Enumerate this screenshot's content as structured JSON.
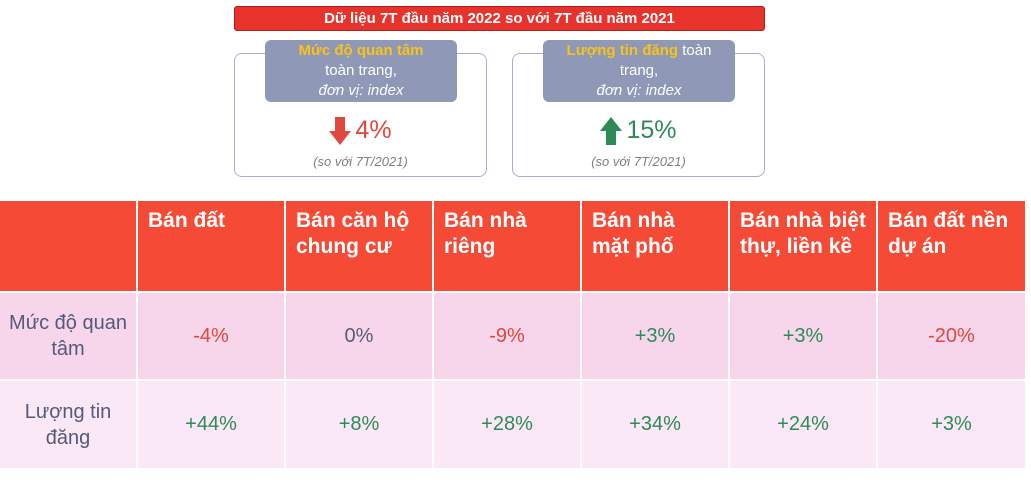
{
  "banner": "Dữ liệu 7T đầu năm 2022 so với 7T đầu năm 2021",
  "cards": [
    {
      "highlight": "Mức độ quan tâm",
      "line2": "toàn trang,",
      "line3": "đơn vị: index",
      "value": "4%",
      "direction": "down",
      "color": "#e1473d",
      "compare": "(so với 7T/2021)"
    },
    {
      "highlight": "Lượng tin đăng",
      "line1_rest": " toàn",
      "line2": "trang,",
      "line3": "đơn vị: index",
      "value": "15%",
      "direction": "up",
      "color": "#2e8a57",
      "compare": "(so với 7T/2021)"
    }
  ],
  "table": {
    "headers": [
      "",
      "Bán đất",
      "Bán căn hộ chung cư",
      "Bán nhà riêng",
      "Bán nhà mặt phố",
      "Bán nhà biệt thự, liền kề",
      "Bán đất nền dự án"
    ],
    "rows": [
      {
        "label": "Mức độ quan tâm",
        "values": [
          "-4%",
          "0%",
          "-9%",
          "+3%",
          "+3%",
          "-20%"
        ]
      },
      {
        "label": "Lượng tin đăng",
        "values": [
          "+44%",
          "+8%",
          "+28%",
          "+34%",
          "+24%",
          "+3%"
        ]
      }
    ]
  },
  "colors": {
    "negative": "#e1473d",
    "positive": "#2e8a57",
    "header": "#f44a36",
    "banner": "#e8322c"
  },
  "icons": {
    "down": "arrow-down-icon",
    "up": "arrow-up-icon"
  }
}
